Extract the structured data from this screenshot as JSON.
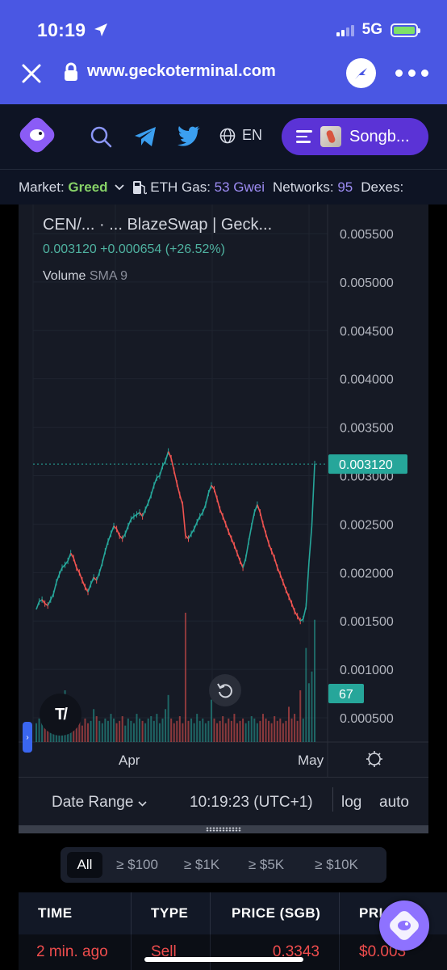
{
  "status": {
    "time": "10:19",
    "network": "5G"
  },
  "browser": {
    "url": "www.geckoterminal.com"
  },
  "nav": {
    "language": "EN",
    "network_label": "Songb..."
  },
  "ticker": {
    "market_label": "Market:",
    "market_value": "Greed",
    "gas_label": "ETH Gas:",
    "gas_value": "53 Gwei",
    "networks_label": "Networks:",
    "networks_value": "95",
    "dexes_label": "Dexes:"
  },
  "chart_data": {
    "type": "line",
    "title": "CEN/...   ·   ...  BlazeSwap | Geck...",
    "price_line": "0.003120  +0.000654 (+26.52%)",
    "volume_label": "Volume",
    "volume_indicator": "SMA 9",
    "y_ticks": [
      "0.005500",
      "0.005000",
      "0.004500",
      "0.004000",
      "0.003500",
      "0.003000",
      "0.002500",
      "0.002000",
      "0.001500",
      "0.001000",
      "0.000500"
    ],
    "y_range": [
      0.00025,
      0.0058
    ],
    "x_ticks": [
      "Apr",
      "May"
    ],
    "current_price": "0.003120",
    "volume_value": "67",
    "series": [
      {
        "values": [
          0.00162,
          0.0017,
          0.00172,
          0.00168,
          0.00166,
          0.00172,
          0.00178,
          0.0019,
          0.00198,
          0.00205,
          0.00208,
          0.00212,
          0.0022,
          0.00215,
          0.00205,
          0.002,
          0.00192,
          0.00185,
          0.0018,
          0.00188,
          0.00195,
          0.00192,
          0.002,
          0.0021,
          0.00222,
          0.00232,
          0.0024,
          0.00248,
          0.00245,
          0.00238,
          0.00235,
          0.0024,
          0.00248,
          0.00255,
          0.00258,
          0.0026,
          0.00262,
          0.00258,
          0.00265,
          0.00272,
          0.0028,
          0.0029,
          0.00298,
          0.003,
          0.0031,
          0.00315,
          0.00325,
          0.00318,
          0.00305,
          0.00292,
          0.0028,
          0.0027,
          0.00238,
          0.00235,
          0.0024,
          0.00245,
          0.00252,
          0.00258,
          0.00262,
          0.0027,
          0.00282,
          0.0029,
          0.00286,
          0.00276,
          0.00265,
          0.00258,
          0.0025,
          0.00242,
          0.00235,
          0.00228,
          0.0022,
          0.00212,
          0.00205,
          0.00215,
          0.00232,
          0.00248,
          0.00262,
          0.0027,
          0.00262,
          0.0025,
          0.0024,
          0.0023,
          0.00222,
          0.00215,
          0.00205,
          0.00198,
          0.0019,
          0.00182,
          0.00175,
          0.00168,
          0.0016,
          0.00155,
          0.0015,
          0.00152,
          0.00165,
          0.0021,
          0.00248,
          0.00312
        ]
      }
    ],
    "volume": [
      8,
      10,
      12,
      9,
      7,
      14,
      8,
      6,
      10,
      9,
      22,
      12,
      10,
      8,
      9,
      12,
      7,
      10,
      8,
      9,
      14,
      11,
      9,
      8,
      10,
      9,
      12,
      10,
      8,
      9,
      11,
      7,
      10,
      9,
      8,
      12,
      10,
      9,
      8,
      10,
      11,
      9,
      12,
      8,
      10,
      14,
      20,
      10,
      8,
      9,
      11,
      8,
      55,
      9,
      10,
      8,
      12,
      9,
      10,
      8,
      9,
      18,
      10,
      8,
      9,
      11,
      8,
      10,
      9,
      12,
      8,
      9,
      10,
      8,
      9,
      11,
      10,
      8,
      9,
      12,
      10,
      9,
      8,
      11,
      9,
      10,
      8,
      9,
      15,
      10,
      12,
      9,
      22,
      10,
      40,
      25,
      30,
      52
    ]
  },
  "chart_footer": {
    "date_range": "Date Range",
    "clock": "10:19:23 (UTC+1)",
    "log": "log",
    "auto": "auto"
  },
  "filters": [
    "All",
    "≥ $100",
    "≥ $1K",
    "≥ $5K",
    "≥ $10K"
  ],
  "table": {
    "headers": [
      "TIME",
      "TYPE",
      "PRICE (SGB)",
      "PRI"
    ],
    "row": [
      "2 min. ago",
      "Sell",
      "0.3343",
      "$0.003"
    ]
  },
  "colors": {
    "accent": "#4a57e3",
    "up": "#26a69a",
    "down": "#ef5350",
    "price_label": "#26a69a"
  }
}
